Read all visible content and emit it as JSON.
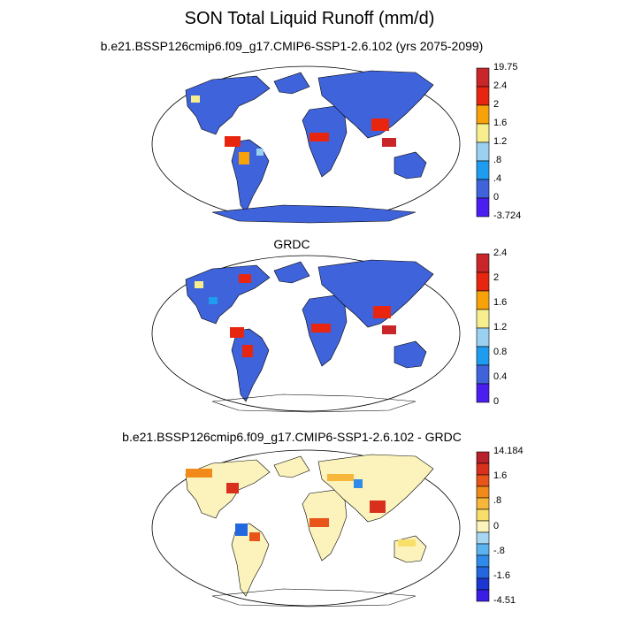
{
  "figure_title": "SON Total Liquid Runoff (mm/d)",
  "palette": {
    "c0": "#4a1ef0",
    "c1": "#3f63da",
    "c2": "#1e9cf0",
    "c3": "#9ad0f0",
    "c4": "#f7ef8e",
    "c5": "#f8a20a",
    "c6": "#e8260f",
    "c7": "#c9262a",
    "d0": "#3a1de6",
    "d1": "#1b36d1",
    "d2": "#2266e0",
    "d3": "#2f8be9",
    "d4": "#5db3f0",
    "d5": "#a7d6f3",
    "d6": "#fbf3bb",
    "d7": "#f7df6a",
    "d8": "#f6b73a",
    "d9": "#f18a18",
    "d10": "#e9541a",
    "d11": "#d9301e",
    "d12": "#b8202a"
  },
  "panels": [
    {
      "title": "b.e21.BSSP126cmip6.f09_g17.CMIP6-SSP1-2.6.102 (yrs 2075-2099)",
      "colorbar": {
        "labels": [
          "19.75",
          "2.4",
          "2",
          "1.6",
          "1.2",
          ".8",
          ".4",
          "0",
          "-3.724"
        ],
        "colors": [
          "c7",
          "c6",
          "c5",
          "c4",
          "c3",
          "c2",
          "c1",
          "c0"
        ]
      }
    },
    {
      "title": "GRDC",
      "colorbar": {
        "labels": [
          "2.4",
          "2",
          "1.6",
          "1.2",
          "0.8",
          "0.4",
          "0"
        ],
        "colors": [
          "c7",
          "c6",
          "c5",
          "c4",
          "c3",
          "c2",
          "c1",
          "c0"
        ]
      }
    },
    {
      "title": "b.e21.BSSP126cmip6.f09_g17.CMIP6-SSP1-2.6.102 - GRDC",
      "colorbar": {
        "labels": [
          "14.184",
          "1.6",
          ".8",
          "0",
          "-.8",
          "-1.6",
          "-4.51"
        ],
        "colors": [
          "d12",
          "d11",
          "d10",
          "d9",
          "d8",
          "d7",
          "d6",
          "d5",
          "d4",
          "d3",
          "d2",
          "d1",
          "d0"
        ]
      }
    }
  ]
}
